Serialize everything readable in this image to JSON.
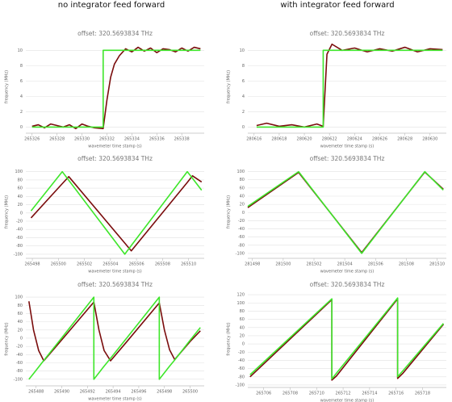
{
  "headers": [
    "no integrator feed forward",
    "with integrator feed forward"
  ],
  "chart_data": [
    {
      "type": "line",
      "title": "offset: 320.5693834 THz",
      "xlabel": "wavemeter time stamp (s)",
      "ylabel": "frequency (MHz)",
      "grid": true,
      "x": [
        265326,
        265326.5,
        265327,
        265327.5,
        265328,
        265328.5,
        265329,
        265329.5,
        265330,
        265330.5,
        265331,
        265331.7,
        265331.7,
        265332,
        265332.3,
        265332.6,
        265333,
        265333.5,
        265334,
        265334.5,
        265335,
        265335.5,
        265336,
        265336.5,
        265337,
        265337.5,
        265338,
        265338.5,
        265339,
        265339.5
      ],
      "series": [
        {
          "color": "#7a0c0c",
          "values": [
            0.1,
            0.3,
            -0.1,
            0.4,
            0.2,
            0,
            0.3,
            -0.2,
            0.4,
            0.1,
            -0.1,
            -0.2,
            -0.2,
            3.5,
            6.5,
            8.2,
            9.3,
            10.2,
            9.8,
            10.4,
            9.9,
            10.3,
            9.7,
            10.2,
            10.1,
            9.8,
            10.3,
            9.9,
            10.4,
            10.2
          ]
        },
        {
          "color": "#3ee62a",
          "values": [
            0,
            0,
            0,
            0,
            0,
            0,
            0,
            0,
            0,
            0,
            0,
            0,
            10,
            10,
            10,
            10,
            10,
            10,
            10,
            10,
            10,
            10,
            10,
            10,
            10,
            10,
            10,
            10,
            10,
            10
          ]
        }
      ],
      "xlim": [
        265325.5,
        265339.8
      ],
      "xticks": [
        265326,
        265328,
        265330,
        265332,
        265334,
        265336,
        265338
      ],
      "ylim": [
        -0.8,
        11.3
      ],
      "yticks": [
        0,
        2,
        4,
        6,
        8,
        10
      ]
    },
    {
      "type": "line",
      "title": "offset: 320.5693834 THz",
      "xlabel": "wavemeter time stamp (s)",
      "ylabel": "frequency (MHz)",
      "grid": true,
      "x": [
        280616.2,
        280617,
        280618,
        280619,
        280620,
        280621,
        280621.5,
        280621.5,
        280621.8,
        280622.2,
        280623,
        280624,
        280625,
        280626,
        280627,
        280628,
        280629,
        280630,
        280631
      ],
      "series": [
        {
          "color": "#7a0c0c",
          "values": [
            0.2,
            0.5,
            0.1,
            0.3,
            0,
            0.4,
            0.1,
            0.1,
            9.5,
            10.8,
            10,
            10.3,
            9.8,
            10.2,
            9.9,
            10.4,
            9.8,
            10.2,
            10.1
          ]
        },
        {
          "color": "#3ee62a",
          "values": [
            0,
            0,
            0,
            0,
            0,
            0,
            0,
            10,
            10,
            10,
            10,
            10,
            10,
            10,
            10,
            10,
            10,
            10,
            10
          ]
        }
      ],
      "xlim": [
        280615.5,
        280631.3
      ],
      "xticks": [
        280616,
        280618,
        280620,
        280622,
        280624,
        280626,
        280628,
        280630
      ],
      "ylim": [
        -0.8,
        11.3
      ],
      "yticks": [
        0,
        2,
        4,
        6,
        8,
        10
      ]
    },
    {
      "type": "line",
      "title": "offset: 320.5693834 THz",
      "xlabel": "wavemeter time stamp (s)",
      "ylabel": "frequency (MHz)",
      "grid": true,
      "x": [
        265497.9,
        265500.3,
        265500.8,
        265505.1,
        265505.6,
        265509.9,
        265510.3,
        265511
      ],
      "series": [
        {
          "color": "#7a0c0c",
          "values": [
            -12,
            71,
            88,
            -73,
            -92,
            74,
            90,
            75
          ]
        },
        {
          "color": "#3ee62a",
          "values": [
            5,
            100,
            79,
            -100,
            -79,
            100,
            84,
            55
          ]
        }
      ],
      "xlim": [
        265497.5,
        265511.2
      ],
      "xticks": [
        265498,
        265500,
        265502,
        265504,
        265506,
        265508,
        265510
      ],
      "ylim": [
        -110,
        115
      ],
      "yticks": [
        -100,
        -80,
        -60,
        -40,
        -20,
        0,
        20,
        40,
        60,
        80,
        100
      ]
    },
    {
      "type": "line",
      "title": "offset: 320.5693834 THz",
      "xlabel": "wavemeter time stamp (s)",
      "ylabel": "frequency (MHz)",
      "grid": true,
      "x": [
        281497.7,
        281501,
        281505.1,
        281509.2,
        281510.4
      ],
      "series": [
        {
          "color": "#7a0c0c",
          "values": [
            12,
            98,
            -98,
            99,
            57
          ]
        },
        {
          "color": "#3ee62a",
          "values": [
            15,
            100,
            -100,
            100,
            55
          ]
        }
      ],
      "xlim": [
        281497.7,
        281510.6
      ],
      "xticks": [
        281498,
        281500,
        281502,
        281504,
        281506,
        281508,
        281510
      ],
      "ylim": [
        -112,
        115
      ],
      "yticks": [
        -100,
        -80,
        -60,
        -40,
        -20,
        0,
        20,
        40,
        60,
        80,
        100
      ]
    },
    {
      "type": "line",
      "title": "offset: 320.5693834 THz",
      "xlabel": "wavemeter time stamp (s)",
      "ylabel": "frequency (MHz)",
      "grid": true,
      "x": [
        265487.44,
        265487.8,
        265488.2,
        265488.6,
        265490,
        265492.5,
        265492.5,
        265492.9,
        265493.3,
        265493.8,
        265495,
        265497.6,
        265497.6,
        265498,
        265498.4,
        265498.8,
        265500,
        265500.8
      ],
      "series": [
        {
          "color": "#7a0c0c",
          "values": [
            90,
            20,
            -30,
            -55,
            -4,
            88,
            88,
            20,
            -30,
            -55,
            -11,
            86,
            86,
            20,
            -28,
            -52,
            -8,
            18
          ]
        },
        {
          "color": "#3ee62a",
          "values": [
            -100,
            -86,
            -70,
            -54,
            1,
            100,
            -100,
            -84,
            -68,
            -49,
            -2,
            100,
            -100,
            -84,
            -68,
            -53,
            -5,
            26
          ]
        }
      ],
      "xlim": [
        265487.2,
        265501.1
      ],
      "xticks": [
        265488,
        265490,
        265492,
        265494,
        265496,
        265498,
        265500
      ],
      "ylim": [
        -116,
        112
      ],
      "yticks": [
        -100,
        -80,
        -60,
        -40,
        -20,
        0,
        20,
        40,
        60,
        80,
        100
      ]
    },
    {
      "type": "line",
      "title": "offset: 320.5693834 THz",
      "xlabel": "wavemeter time stamp (s)",
      "ylabel": "frequency (MHz)",
      "grid": true,
      "x": [
        265704.97,
        265711.15,
        265711.15,
        265711.5,
        265716.12,
        265716.12,
        265716.5,
        265719.58
      ],
      "series": [
        {
          "color": "#7a0c0c",
          "values": [
            -80,
            108,
            -88,
            -78,
            110,
            -84,
            -72,
            48
          ]
        },
        {
          "color": "#3ee62a",
          "values": [
            -75,
            110,
            -85,
            -71,
            112,
            -80,
            -66,
            50
          ]
        }
      ],
      "xlim": [
        265704.8,
        265719.8
      ],
      "xticks": [
        265706,
        265708,
        265710,
        265712,
        265714,
        265716,
        265718
      ],
      "ylim": [
        -106,
        130
      ],
      "yticks": [
        -100,
        -80,
        -60,
        -40,
        -20,
        0,
        20,
        40,
        60,
        80,
        100,
        120
      ]
    }
  ]
}
